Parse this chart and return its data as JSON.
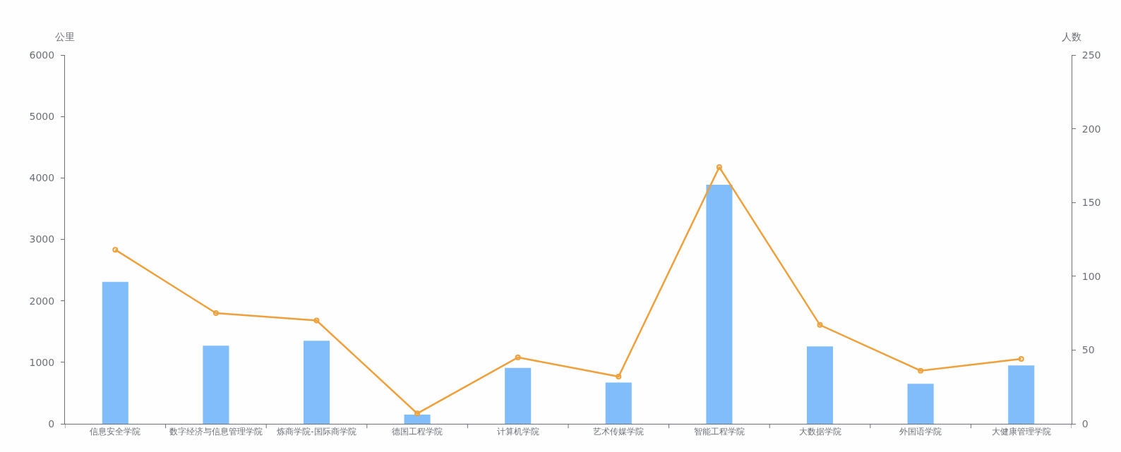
{
  "chart_data": {
    "type": "bar",
    "ylabel": "公里",
    "y2label": "人数",
    "categories": [
      "信息安全学院",
      "数字经济与信息管理学院",
      "炼商学院-国际商学院",
      "德国工程学院",
      "计算机学院",
      "艺术传媒学院",
      "智能工程学院",
      "大数据学院",
      "外国语学院",
      "大健康管理学院"
    ],
    "series": [
      {
        "color": "#80bdfa",
        "values": [
          2310,
          1270,
          1350,
          150,
          910,
          670,
          3890,
          1260,
          650,
          950
        ]
      },
      {
        "type": "line",
        "axis": "y2",
        "color": "#f0a03a",
        "marker": "circle",
        "values": [
          118,
          75,
          70,
          7,
          45,
          32,
          174,
          67,
          36,
          44
        ]
      }
    ],
    "ylim": [
      0,
      6000
    ],
    "yticks": [
      0,
      1000,
      2000,
      3000,
      4000,
      5000,
      6000
    ],
    "y2lim": [
      0,
      250
    ],
    "y2ticks": [
      0,
      50,
      100,
      150,
      200,
      250
    ]
  }
}
